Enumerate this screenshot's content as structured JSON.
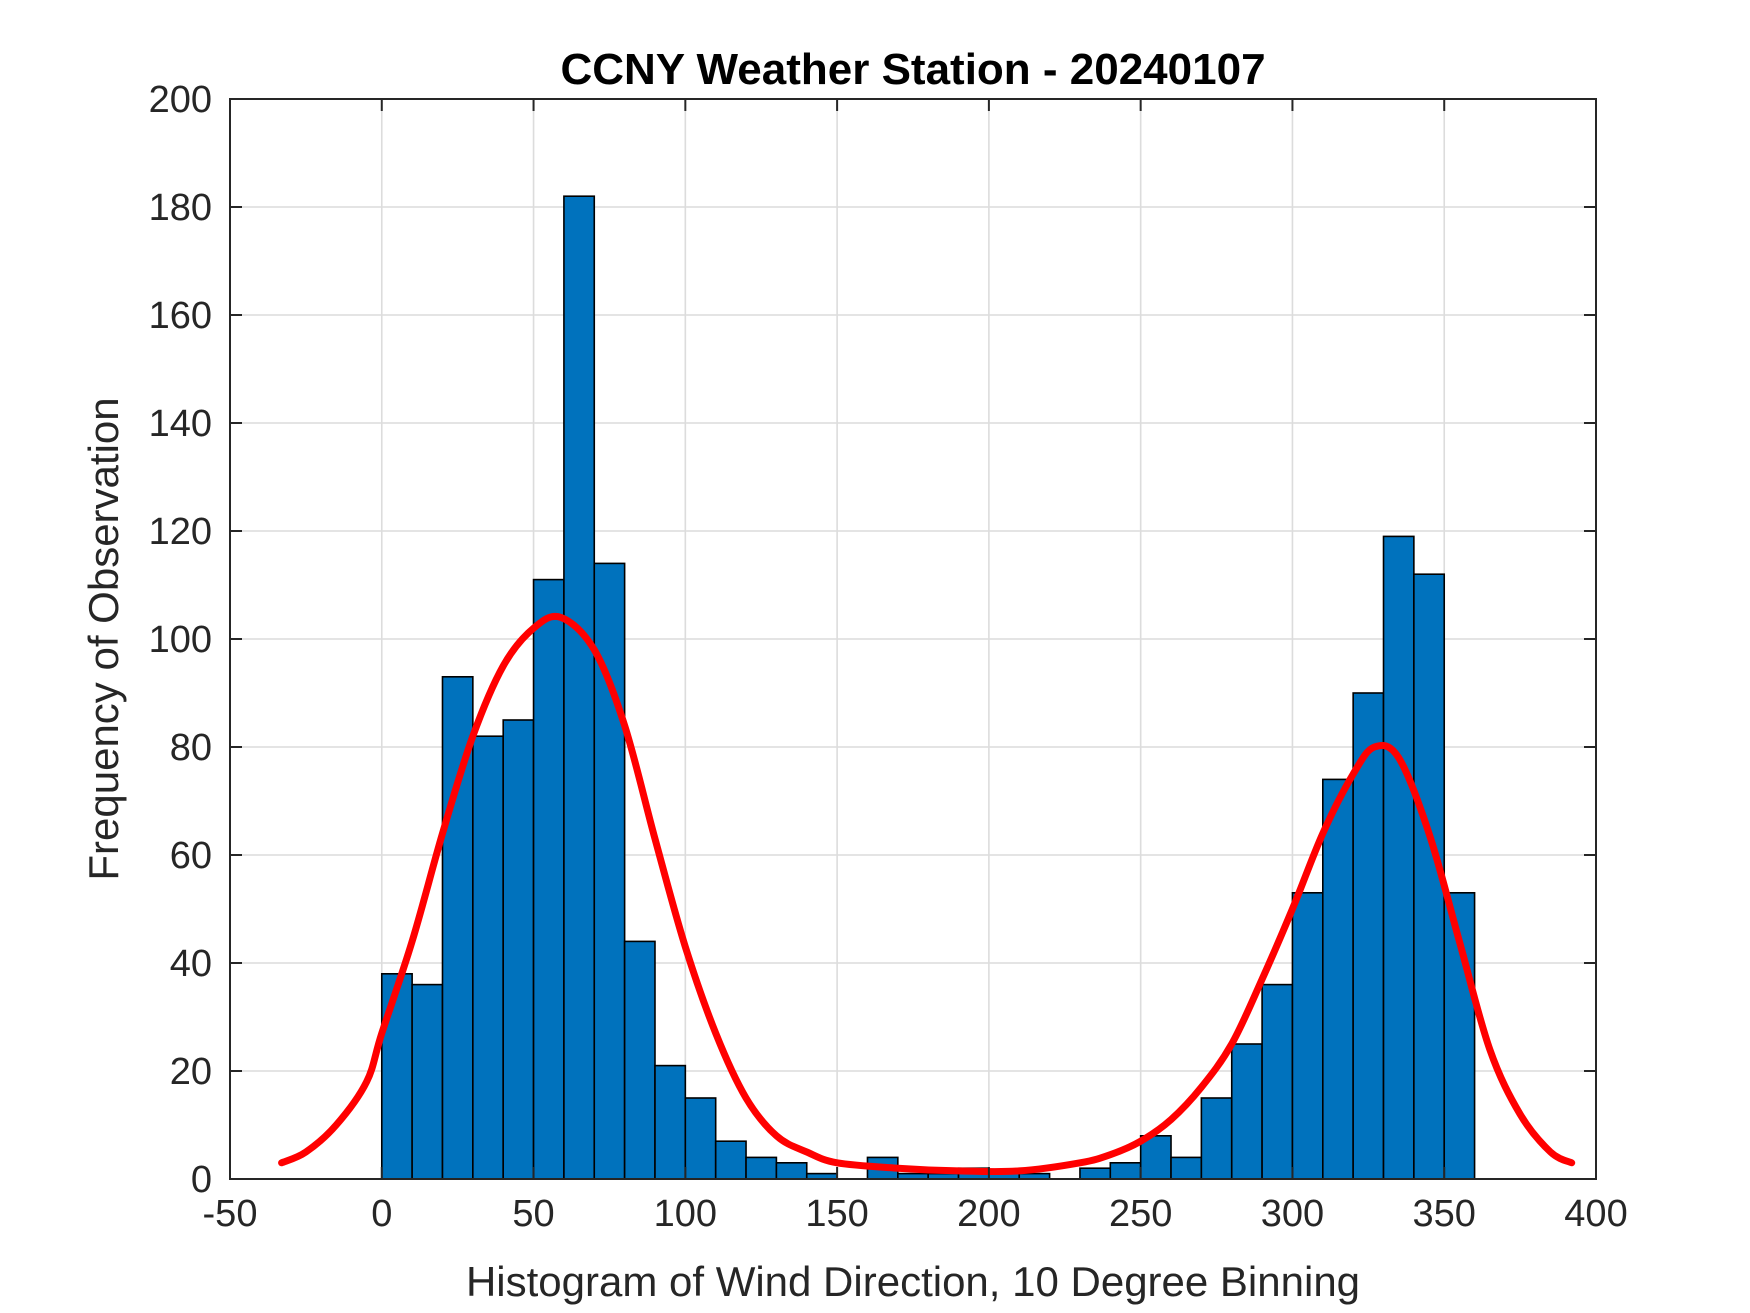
{
  "chart_data": {
    "type": "bar",
    "title": "CCNY Weather Station - 20240107",
    "xlabel": "Histogram of Wind Direction, 10 Degree Binning",
    "ylabel": "Frequency of Observation",
    "xlim": [
      -50,
      400
    ],
    "ylim": [
      0,
      200
    ],
    "xticks": [
      -50,
      0,
      50,
      100,
      150,
      200,
      250,
      300,
      350,
      400
    ],
    "yticks": [
      0,
      20,
      40,
      60,
      80,
      100,
      120,
      140,
      160,
      180,
      200
    ],
    "grid": true,
    "bin_width": 10,
    "bin_edges_start": 0,
    "values": [
      38,
      36,
      93,
      82,
      85,
      111,
      182,
      114,
      44,
      21,
      15,
      7,
      4,
      3,
      1,
      0,
      4,
      1,
      1,
      2,
      1,
      1,
      0,
      2,
      3,
      8,
      4,
      15,
      25,
      36,
      53,
      74,
      90,
      119,
      112,
      53
    ],
    "bar_color": "#0072BD",
    "fit_curve": {
      "name": "fitted distribution",
      "color": "#FF0000",
      "x": [
        -33,
        -25,
        -15,
        -5,
        0,
        10,
        20,
        30,
        40,
        50,
        59,
        70,
        80,
        90,
        100,
        110,
        120,
        130,
        140,
        150,
        170,
        190,
        210,
        230,
        240,
        250,
        260,
        270,
        280,
        290,
        300,
        310,
        320,
        327,
        335,
        345,
        355,
        365,
        375,
        385,
        392
      ],
      "y": [
        3,
        5,
        10,
        18,
        27,
        44,
        64,
        82,
        95,
        102,
        104,
        98,
        84,
        63,
        43,
        27,
        15,
        8,
        5,
        3,
        2,
        1.5,
        1.5,
        3,
        4.5,
        7,
        11,
        17,
        25,
        37,
        50,
        64,
        75,
        80,
        78,
        64,
        44,
        24,
        12,
        5,
        3
      ]
    }
  }
}
